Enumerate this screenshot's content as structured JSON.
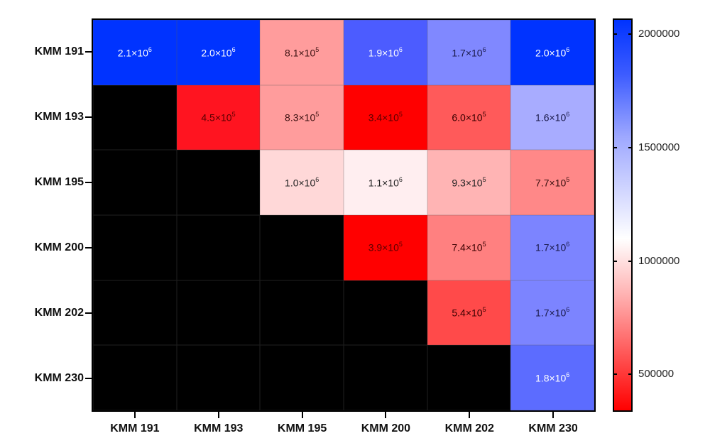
{
  "chart_data": {
    "type": "heatmap",
    "title": "",
    "xlabel": "",
    "ylabel": "",
    "x_categories": [
      "KMM 191",
      "KMM 193",
      "KMM 195",
      "KMM 200",
      "KMM 202",
      "KMM 230"
    ],
    "y_categories": [
      "KMM 191",
      "KMM 193",
      "KMM 195",
      "KMM 200",
      "KMM 202",
      "KMM 230"
    ],
    "values": [
      [
        2100000,
        2000000,
        810000,
        1900000,
        1700000,
        2000000
      ],
      [
        null,
        450000,
        830000,
        340000,
        600000,
        1600000
      ],
      [
        null,
        null,
        1000000,
        1100000,
        930000,
        770000
      ],
      [
        null,
        null,
        null,
        390000,
        740000,
        1700000
      ],
      [
        null,
        null,
        null,
        null,
        540000,
        1700000
      ],
      [
        null,
        null,
        null,
        null,
        null,
        1800000
      ]
    ],
    "labels": [
      [
        [
          "2.1×10",
          "6"
        ],
        [
          "2.0×10",
          "6"
        ],
        [
          "8.1×10",
          "5"
        ],
        [
          "1.9×10",
          "6"
        ],
        [
          "1.7×10",
          "6"
        ],
        [
          "2.0×10",
          "6"
        ]
      ],
      [
        null,
        [
          "4.5×10",
          "5"
        ],
        [
          "8.3×10",
          "5"
        ],
        [
          "3.4×10",
          "5"
        ],
        [
          "6.0×10",
          "5"
        ],
        [
          "1.6×10",
          "6"
        ]
      ],
      [
        null,
        null,
        [
          "1.0×10",
          "6"
        ],
        [
          "1.1×10",
          "6"
        ],
        [
          "9.3×10",
          "5"
        ],
        [
          "7.7×10",
          "5"
        ]
      ],
      [
        null,
        null,
        null,
        [
          "3.9×10",
          "5"
        ],
        [
          "7.4×10",
          "5"
        ],
        [
          "1.7×10",
          "6"
        ]
      ],
      [
        null,
        null,
        null,
        null,
        [
          "5.4×10",
          "5"
        ],
        [
          "1.7×10",
          "6"
        ]
      ],
      [
        null,
        null,
        null,
        null,
        null,
        [
          "1.8×10",
          "6"
        ]
      ]
    ],
    "cell_colors": [
      [
        "#0033ff",
        "#0033ff",
        "#ff9c9c",
        "#4c5cff",
        "#8088ff",
        "#0033ff"
      ],
      [
        "#000000",
        "#ff1420",
        "#ff9c9c",
        "#ff0000",
        "#ff5a5a",
        "#a8acff"
      ],
      [
        "#000000",
        "#000000",
        "#ffd8d8",
        "#ffeef0",
        "#ffb4b4",
        "#ff8888"
      ],
      [
        "#000000",
        "#000000",
        "#000000",
        "#ff0000",
        "#ff8080",
        "#7c84ff"
      ],
      [
        "#000000",
        "#000000",
        "#000000",
        "#000000",
        "#ff4a4a",
        "#7c84ff"
      ],
      [
        "#000000",
        "#000000",
        "#000000",
        "#000000",
        "#000000",
        "#5c6cff"
      ]
    ],
    "text_colors": [
      [
        "#ffffff",
        "#ffffff",
        "#3a1010",
        "#ffffff",
        "#1a1a4a",
        "#ffffff"
      ],
      [
        null,
        "#5a0000",
        "#3a1010",
        "#5a0000",
        "#3a0000",
        "#1a1a4a"
      ],
      [
        null,
        null,
        "#222222",
        "#222222",
        "#222222",
        "#3a1010"
      ],
      [
        null,
        null,
        null,
        "#5a0000",
        "#3a0000",
        "#1a1a4a"
      ],
      [
        null,
        null,
        null,
        null,
        "#3a0000",
        "#1a1a4a"
      ],
      [
        null,
        null,
        null,
        null,
        null,
        "#ffffff"
      ]
    ],
    "colorbar": {
      "ticks": [
        "2000000",
        "1500000",
        "1000000",
        "500000"
      ],
      "tick_values": [
        2000000,
        1500000,
        1000000,
        500000
      ],
      "range": [
        340000,
        2100000
      ],
      "colormap": [
        "#ff0000",
        "#ffffff",
        "#0033ff"
      ]
    },
    "missing_color": "#000000",
    "legend_position": "right"
  }
}
